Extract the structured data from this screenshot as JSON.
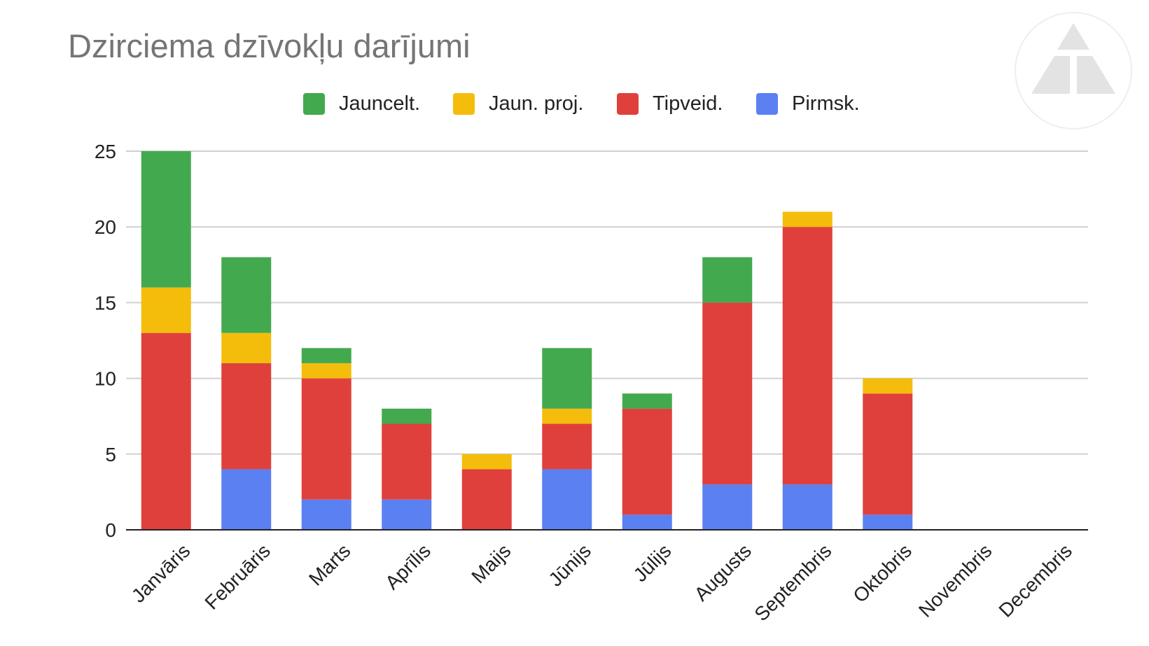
{
  "chart_data": {
    "type": "bar",
    "stacked": true,
    "title": "Dzirciema dzīvokļu darījumi",
    "xlabel": "",
    "ylabel": "",
    "ylim": [
      0,
      25
    ],
    "yticks": [
      0,
      5,
      10,
      15,
      20,
      25
    ],
    "grid": true,
    "legend_position": "top",
    "categories": [
      "Janvāris",
      "Februāris",
      "Marts",
      "Aprīlis",
      "Maijs",
      "Jūnijs",
      "Jūlijs",
      "Augusts",
      "Septembris",
      "Oktobris",
      "Novembris",
      "Decembris"
    ],
    "series": [
      {
        "name": "Pirmsk.",
        "color": "#5b80f1",
        "values": [
          0,
          4,
          2,
          2,
          0,
          4,
          1,
          3,
          3,
          1,
          0,
          0
        ]
      },
      {
        "name": "Tipveid.",
        "color": "#e0403b",
        "values": [
          13,
          7,
          8,
          5,
          4,
          3,
          7,
          12,
          17,
          8,
          0,
          0
        ]
      },
      {
        "name": "Jaun. proj.",
        "color": "#f4bd0b",
        "values": [
          3,
          2,
          1,
          0,
          1,
          1,
          0,
          0,
          1,
          1,
          0,
          0
        ]
      },
      {
        "name": "Jauncelt.",
        "color": "#43a94f",
        "values": [
          9,
          5,
          1,
          1,
          0,
          4,
          1,
          3,
          0,
          0,
          0,
          0
        ]
      }
    ],
    "legend_order": [
      "Jauncelt.",
      "Jaun. proj.",
      "Tipveid.",
      "Pirmsk."
    ]
  },
  "logo": {
    "icon": "triangle-logo-icon"
  },
  "colors": {
    "grid": "#d0d0d0",
    "axis": "#222222",
    "title": "#757575"
  }
}
